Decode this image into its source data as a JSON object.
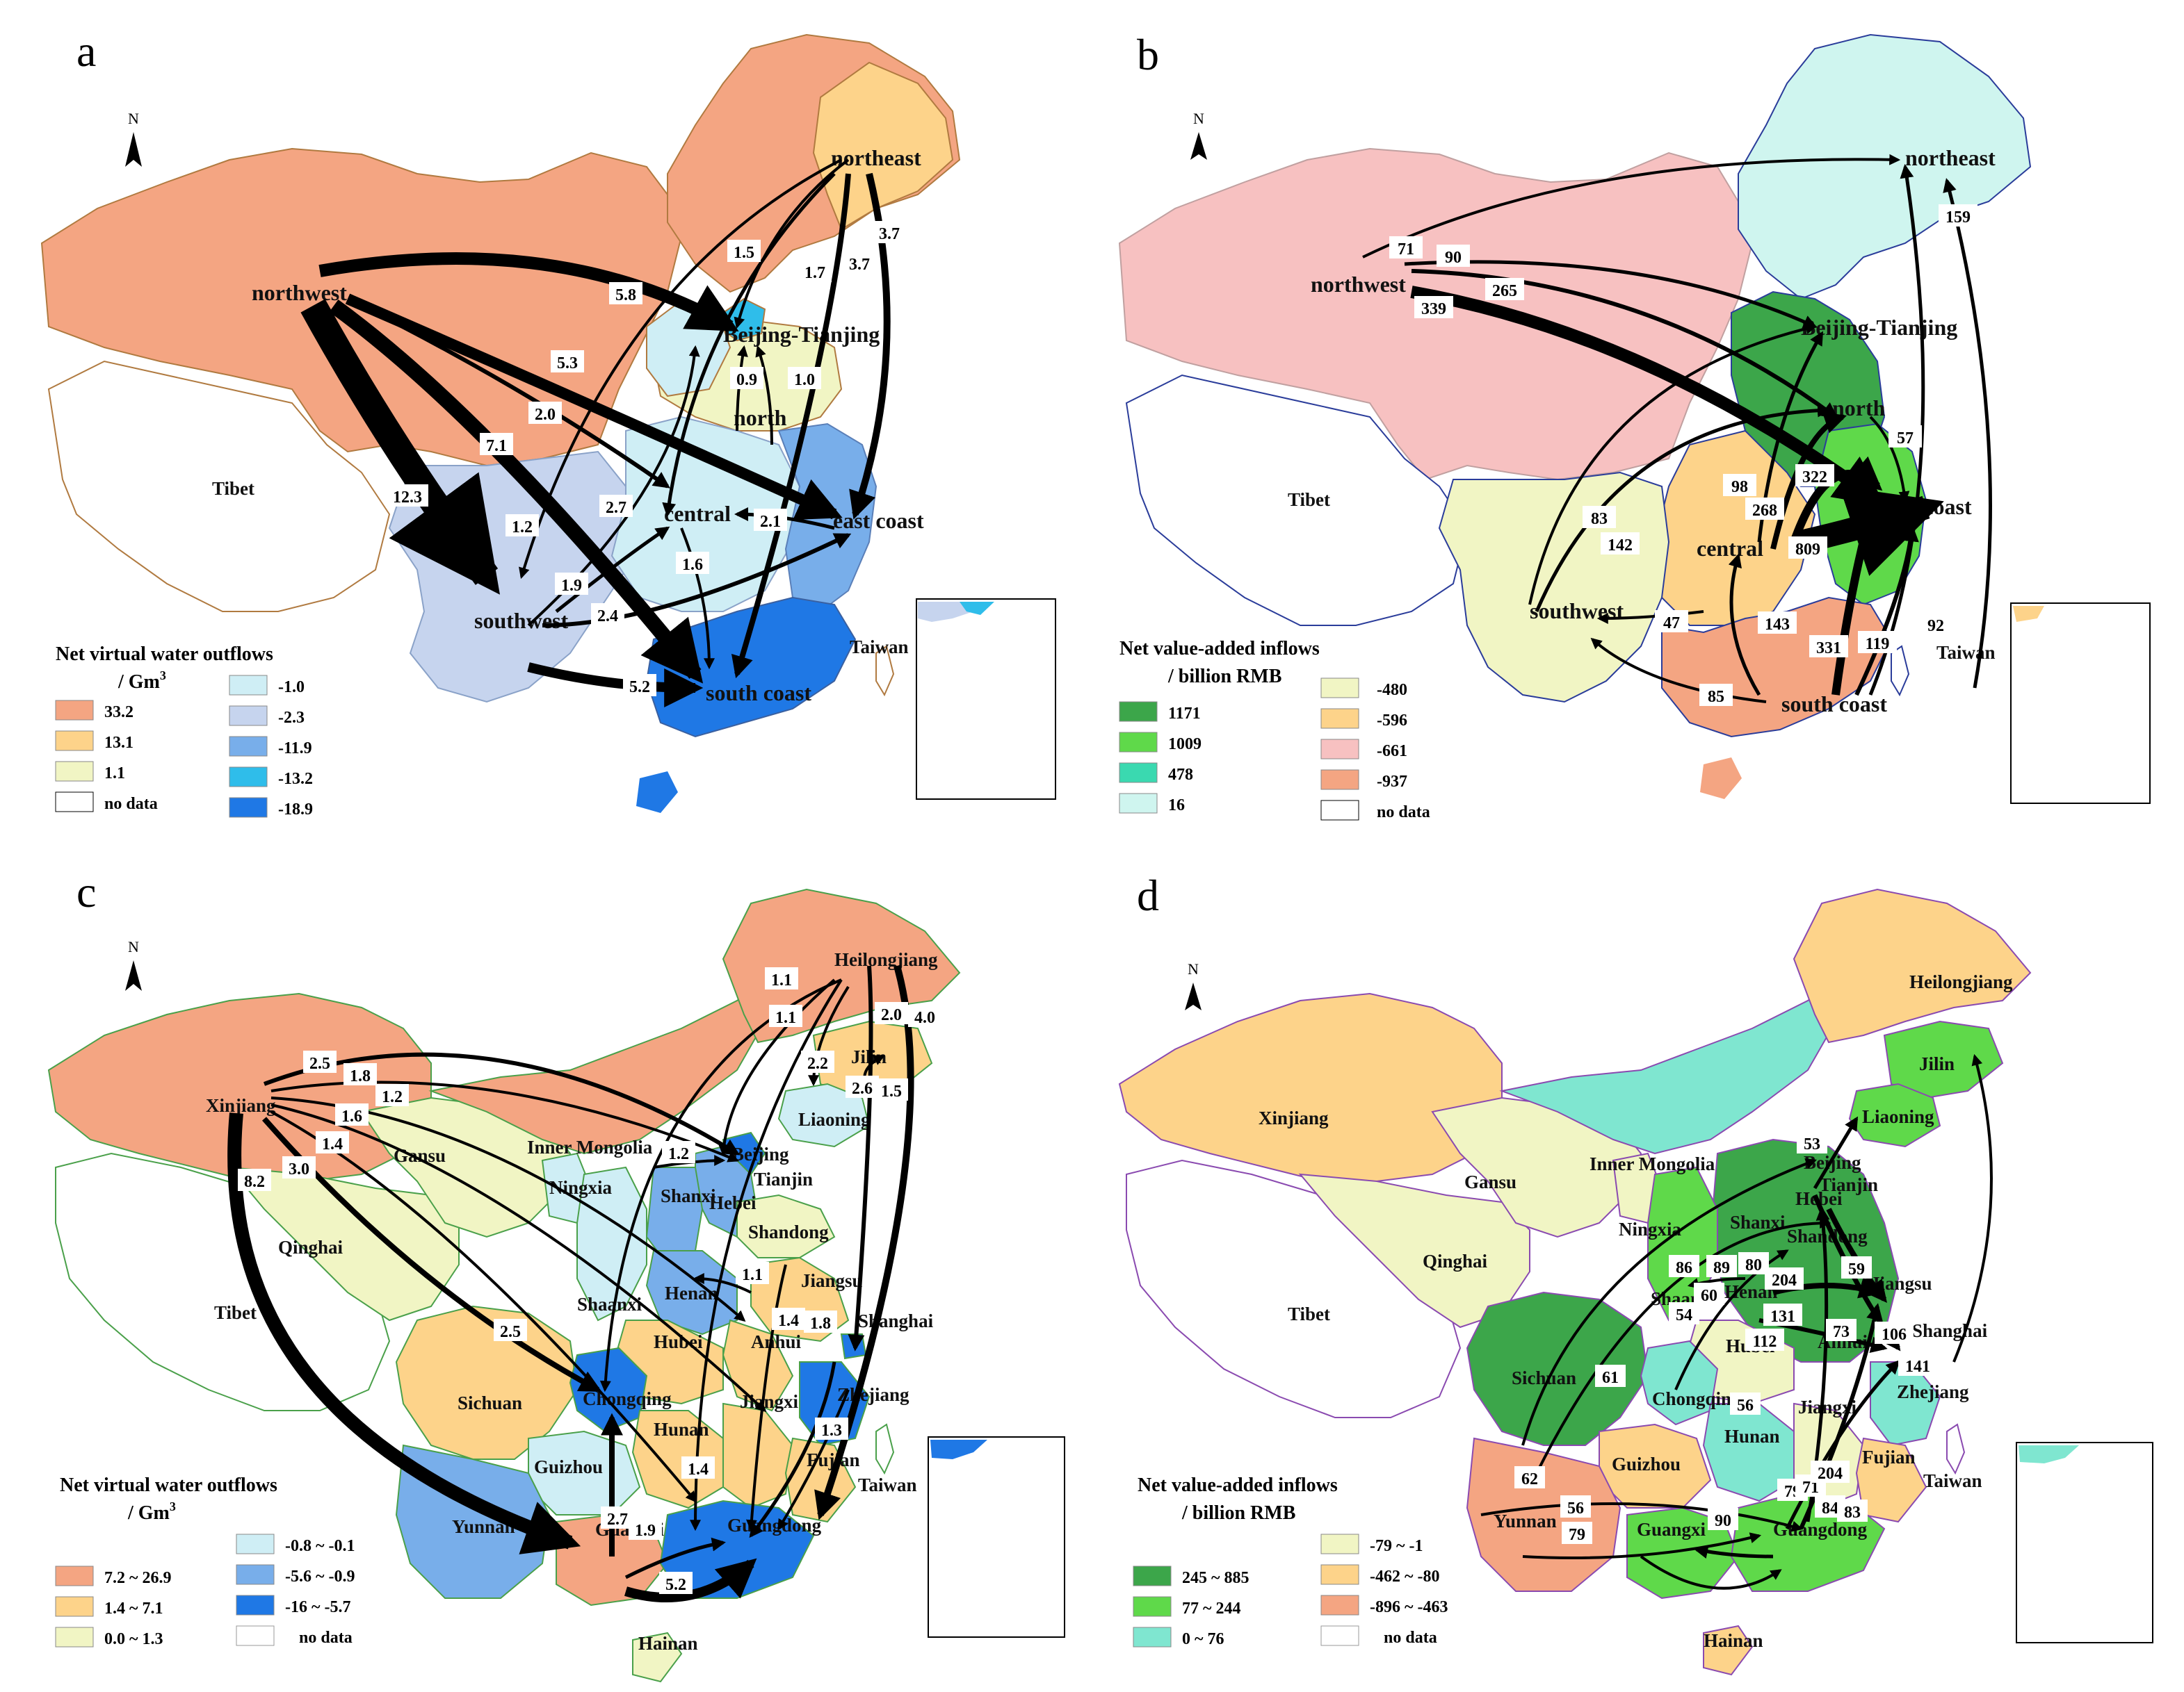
{
  "colors": {
    "a_orange": "#f4a582",
    "a_gold": "#fdd38a",
    "a_yellow": "#f1f5c4",
    "a_pale": "#cfeef5",
    "a_lav": "#c6d4ee",
    "a_mid": "#78aeea",
    "a_cyan": "#2fbdea",
    "a_blue": "#1f78e5",
    "b_dark": "#3ca64a",
    "b_green": "#5fd94a",
    "b_teal": "#3ad9b0",
    "b_pale": "#cff5ef",
    "b_yellow": "#f1f5c4",
    "b_gold": "#fdd38a",
    "b_pink": "#f7c1c1",
    "b_orange": "#f4a582",
    "arrow": "#000000"
  },
  "panels": {
    "a": {
      "letter": "a",
      "regions": {
        "northeast": "northeast",
        "northwest": "northwest",
        "beijing": "Beijing-Tianjing",
        "north": "north",
        "tibet": "Tibet",
        "central": "central",
        "east": "east coast",
        "southwest": "southwest",
        "south": "south coast",
        "taiwan": "Taiwan"
      },
      "flows": [
        "1.5",
        "1.7",
        "3.7",
        "3.7",
        "5.8",
        "0.9",
        "1.0",
        "5.3",
        "2.0",
        "7.1",
        "12.3",
        "1.2",
        "2.7",
        "2.1",
        "1.9",
        "1.6",
        "2.4",
        "5.2"
      ],
      "legend": {
        "title": "Net virtual water outflows",
        "unit": "/ Gm",
        "left": [
          "33.2",
          "13.1",
          "1.1",
          "no data"
        ],
        "right": [
          "-1.0",
          "-2.3",
          "-11.9",
          "-13.2",
          "-18.9"
        ]
      }
    },
    "b": {
      "letter": "b",
      "regions": {
        "northeast": "northeast",
        "northwest": "northwest",
        "beijing": "Beijing-Tianjing",
        "north": "north",
        "tibet": "Tibet",
        "central": "central",
        "east": "east coast",
        "southwest": "southwest",
        "south": "south coast",
        "taiwan": "Taiwan"
      },
      "flows": [
        "71",
        "90",
        "265",
        "339",
        "159",
        "57",
        "98",
        "268",
        "322",
        "809",
        "83",
        "142",
        "47",
        "143",
        "331",
        "119",
        "92",
        "85"
      ],
      "legend": {
        "title": "Net value-added inflows",
        "unit": "/ billion RMB",
        "left": [
          "1171",
          "1009",
          "478",
          "16"
        ],
        "right": [
          "-480",
          "-596",
          "-661",
          "-937",
          "no data"
        ]
      }
    },
    "c": {
      "letter": "c",
      "regions": {
        "heilongjiang": "Heilongjiang",
        "jilin": "Jilin",
        "liaoning": "Liaoning",
        "xinjiang": "Xinjiang",
        "gansu": "Gansu",
        "innermongolia": "Inner Mongolia",
        "beijing": "Beijing",
        "tianjin": "Tianjin",
        "hebei": "Hebei",
        "shanxi": "Shanxi",
        "shandong": "Shandong",
        "ningxia": "Ningxia",
        "qinghai": "Qinghai",
        "tibet": "Tibet",
        "henan": "Henan",
        "shaanxi": "Shaanxi",
        "jiangsu": "Jiangsu",
        "anhui": "Anhui",
        "shanghai": "Shanghai",
        "hubei": "Hubei",
        "sichuan": "Sichuan",
        "chongqing": "Chongqing",
        "zhejiang": "Zhejiang",
        "hunan": "Hunan",
        "jiangxi": "Jiangxi",
        "fujian": "Fujian",
        "guizhou": "Guizhou",
        "yunnan": "Yunnan",
        "guangxi": "Guangxi",
        "guangdong": "Guangdong",
        "taiwan": "Taiwan",
        "hainan": "Hainan"
      },
      "flows": [
        "1.1",
        "1.1",
        "2.2",
        "2.6",
        "1.5",
        "2.0",
        "4.0",
        "2.5",
        "1.8",
        "1.2",
        "1.6",
        "1.4",
        "3.0",
        "8.2",
        "1.2",
        "1.1",
        "1.4",
        "1.8",
        "2.5",
        "1.3",
        "1.4",
        "2.7",
        "1.9",
        "5.2"
      ],
      "legend": {
        "title": "Net virtual water outflows",
        "unit": "/ Gm",
        "left": [
          "7.2 ~ 26.9",
          "1.4 ~ 7.1",
          "0.0 ~ 1.3"
        ],
        "right": [
          "-0.8 ~ -0.1",
          "-5.6 ~ -0.9",
          "-16 ~ -5.7",
          "no data"
        ]
      }
    },
    "d": {
      "letter": "d",
      "regions": {
        "heilongjiang": "Heilongjiang",
        "jilin": "Jilin",
        "liaoning": "Liaoning",
        "xinjiang": "Xinjiang",
        "gansu": "Gansu",
        "innermongolia": "Inner Mongolia",
        "beijing": "Beijing",
        "tianjin": "Tianjin",
        "hebei": "Hebei",
        "shanxi": "Shanxi",
        "shandong": "Shandong",
        "ningxia": "Ningxia",
        "qinghai": "Qinghai",
        "tibet": "Tibet",
        "henan": "Henan",
        "shaanxi": "Shaanxi",
        "jiangsu": "Jiangsu",
        "anhui": "Anhui",
        "shanghai": "Shanghai",
        "hubei": "Hubei",
        "sichuan": "Sichuan",
        "chongqing": "Chongqing",
        "zhejiang": "Zhejiang",
        "hunan": "Hunan",
        "jiangxi": "Jiangxi",
        "fujian": "Fujian",
        "guizhou": "Guizhou",
        "yunnan": "Yunnan",
        "guangxi": "Guangxi",
        "guangdong": "Guangdong",
        "taiwan": "Taiwan",
        "hainan": "Hainan"
      },
      "flows": [
        "53",
        "86",
        "89",
        "80",
        "60",
        "54",
        "204",
        "131",
        "112",
        "59",
        "73",
        "106",
        "141",
        "61",
        "56",
        "62",
        "56",
        "79",
        "79",
        "71",
        "204",
        "84",
        "83",
        "90"
      ],
      "legend": {
        "title": "Net value-added inflows",
        "unit": "/ billion RMB",
        "left": [
          "245 ~ 885",
          "77 ~ 244",
          "0 ~ 76"
        ],
        "right": [
          "-79 ~ -1",
          "-462 ~ -80",
          "-896 ~ -463",
          "no data"
        ]
      }
    }
  },
  "north_label": "N"
}
